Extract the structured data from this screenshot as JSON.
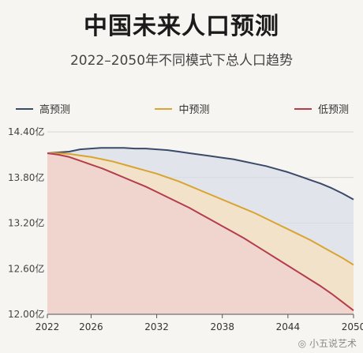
{
  "title": "中国未来人口预测",
  "subtitle": "2022–2050年不同模式下总人口趋势",
  "watermark": "小五说艺术",
  "chart_data": {
    "type": "area",
    "title": "中国未来人口预测",
    "subtitle": "2022–2050年不同模式下总人口趋势",
    "x": [
      2022,
      2023,
      2024,
      2025,
      2026,
      2027,
      2028,
      2029,
      2030,
      2031,
      2032,
      2033,
      2034,
      2035,
      2036,
      2037,
      2038,
      2039,
      2040,
      2041,
      2042,
      2043,
      2044,
      2045,
      2046,
      2047,
      2048,
      2049,
      2050
    ],
    "xticks": [
      "2022",
      "2026",
      "2032",
      "2038",
      "2044",
      "2050"
    ],
    "yticks": [
      "12.00亿",
      "12.60亿",
      "13.20亿",
      "13.80亿",
      "14.40亿"
    ],
    "ylim": [
      12.0,
      14.4
    ],
    "legend_position": "top",
    "series": [
      {
        "name": "高预测",
        "color": "#3b4a68",
        "values": [
          14.12,
          14.13,
          14.14,
          14.17,
          14.18,
          14.19,
          14.19,
          14.19,
          14.18,
          14.18,
          14.17,
          14.16,
          14.14,
          14.12,
          14.1,
          14.08,
          14.06,
          14.04,
          14.01,
          13.98,
          13.95,
          13.91,
          13.87,
          13.82,
          13.77,
          13.72,
          13.66,
          13.59,
          13.51
        ]
      },
      {
        "name": "中预测",
        "color": "#d9a431",
        "values": [
          14.12,
          14.12,
          14.11,
          14.09,
          14.07,
          14.04,
          14.01,
          13.97,
          13.93,
          13.89,
          13.85,
          13.8,
          13.75,
          13.69,
          13.63,
          13.57,
          13.51,
          13.45,
          13.39,
          13.33,
          13.26,
          13.19,
          13.12,
          13.05,
          12.98,
          12.9,
          12.82,
          12.74,
          12.65
        ]
      },
      {
        "name": "低预测",
        "color": "#b53c4c",
        "values": [
          14.12,
          14.1,
          14.07,
          14.02,
          13.97,
          13.92,
          13.86,
          13.8,
          13.74,
          13.68,
          13.61,
          13.54,
          13.47,
          13.4,
          13.32,
          13.24,
          13.16,
          13.08,
          13.0,
          12.91,
          12.82,
          12.73,
          12.64,
          12.55,
          12.46,
          12.37,
          12.27,
          12.16,
          12.05
        ]
      }
    ]
  }
}
